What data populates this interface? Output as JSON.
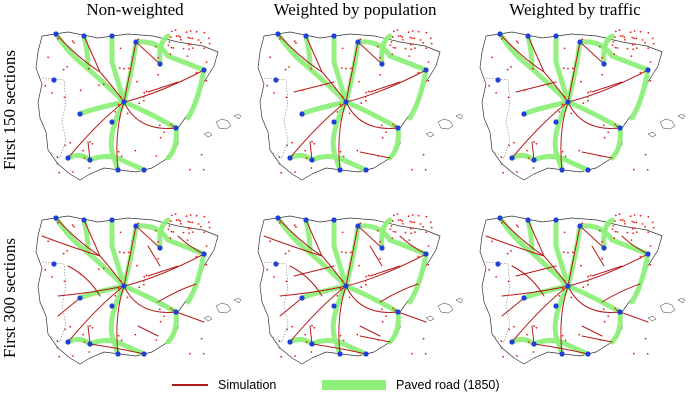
{
  "columns": [
    "Non-weighted",
    "Weighted by population",
    "Weighted by traffic"
  ],
  "rows": [
    "First 150 sections",
    "First 300 sections"
  ],
  "legend": {
    "simulation": "Simulation",
    "paved_road": "Paved road (1850)"
  },
  "colors": {
    "simulation": "#b31b1b",
    "paved_road": "#8ef07a",
    "overlap": "#9a7a1e",
    "city_major": "#1f3fd6",
    "city_minor": "#e0261a",
    "coastline": "#333333"
  }
}
